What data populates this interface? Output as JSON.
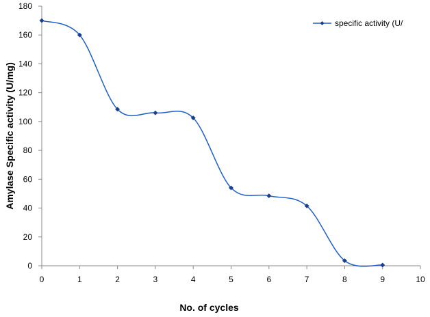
{
  "chart_data": {
    "type": "line",
    "title": "",
    "xlabel": "No. of cycles",
    "ylabel": "Amylase Specific activity (U/mg)",
    "xlim": [
      0,
      10
    ],
    "ylim": [
      0,
      180
    ],
    "x_ticks": [
      "0",
      "1",
      "2",
      "3",
      "4",
      "5",
      "6",
      "7",
      "8",
      "9",
      "10"
    ],
    "y_ticks": [
      "0",
      "20",
      "40",
      "60",
      "80",
      "100",
      "120",
      "140",
      "160",
      "180"
    ],
    "grid": false,
    "legend_position": "top-right",
    "series": [
      {
        "name": "specific activity (U/",
        "color": "#1f5fc6",
        "x": [
          0,
          1,
          2,
          3,
          4,
          5,
          6,
          7,
          8,
          9
        ],
        "y": [
          170,
          160,
          108.5,
          106,
          102.5,
          54,
          48.5,
          41.5,
          3.5,
          0.5
        ]
      }
    ]
  }
}
